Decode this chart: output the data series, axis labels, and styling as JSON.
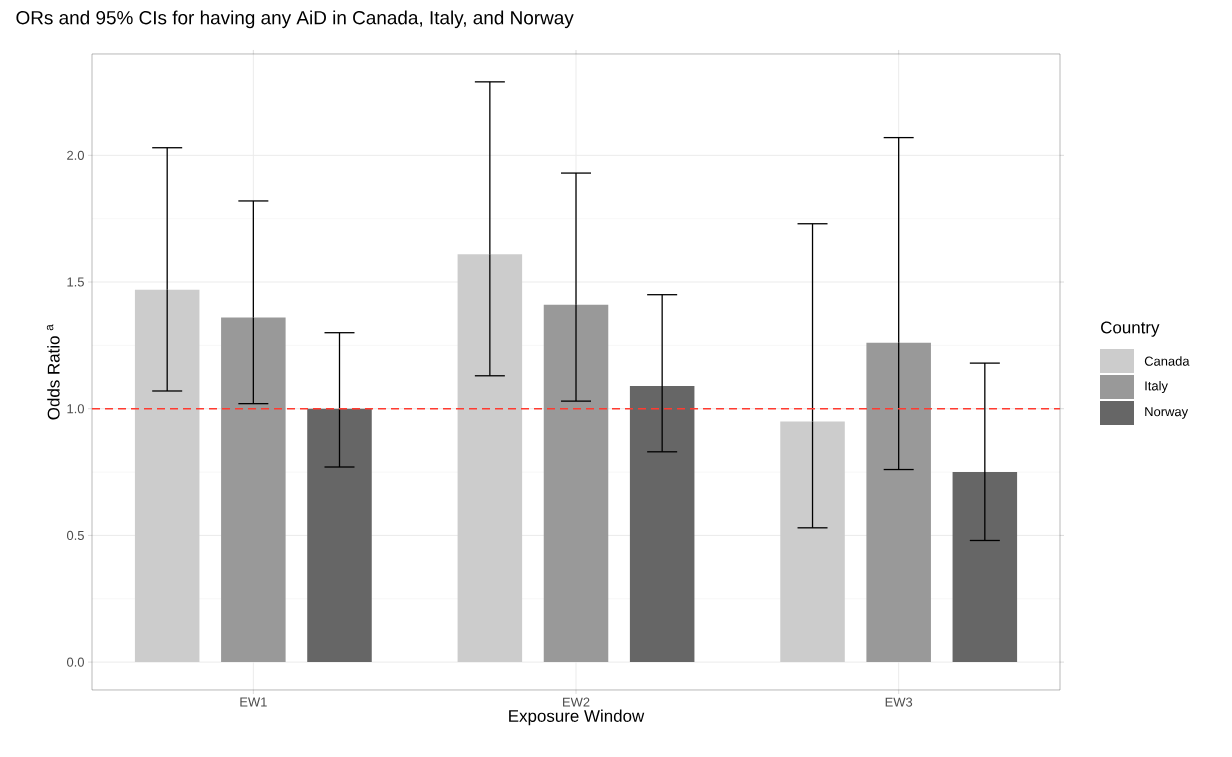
{
  "chart_data": {
    "type": "bar",
    "title": "ORs and 95% CIs for having any AiD in Canada, Italy, and Norway",
    "xlabel": "Exposure Window",
    "ylabel": "Odds Ratio $^{a}$",
    "legend_title": "Country",
    "categories": [
      "EW1",
      "EW2",
      "EW3"
    ],
    "series": [
      {
        "name": "Canada",
        "color": "#cccccc",
        "values": [
          1.47,
          1.61,
          0.95
        ],
        "errors": [
          [
            1.07,
            2.03
          ],
          [
            1.13,
            2.29
          ],
          [
            0.53,
            1.73
          ]
        ]
      },
      {
        "name": "Italy",
        "color": "#999999",
        "values": [
          1.36,
          1.41,
          1.26
        ],
        "errors": [
          [
            1.02,
            1.82
          ],
          [
            1.03,
            1.93
          ],
          [
            0.76,
            2.07
          ]
        ]
      },
      {
        "name": "Norway",
        "color": "#666666",
        "values": [
          1.0,
          1.09,
          0.75
        ],
        "errors": [
          [
            0.77,
            1.3
          ],
          [
            0.83,
            1.45
          ],
          [
            0.48,
            1.18
          ]
        ]
      }
    ],
    "ylim": [
      -0.11,
      2.4
    ],
    "yticks": [
      {
        "value": 0,
        "label": "0.0"
      },
      {
        "value": 0.5,
        "label": "0.5"
      },
      {
        "value": 1,
        "label": "1.0"
      },
      {
        "value": 1.5,
        "label": "1.5"
      },
      {
        "value": 2,
        "label": "2.0"
      }
    ],
    "grid": true,
    "legend": "right",
    "ref_lines": [
      {
        "axis": "y",
        "value": 1,
        "color": "#ff3b30",
        "line_style": "dashed"
      }
    ]
  }
}
